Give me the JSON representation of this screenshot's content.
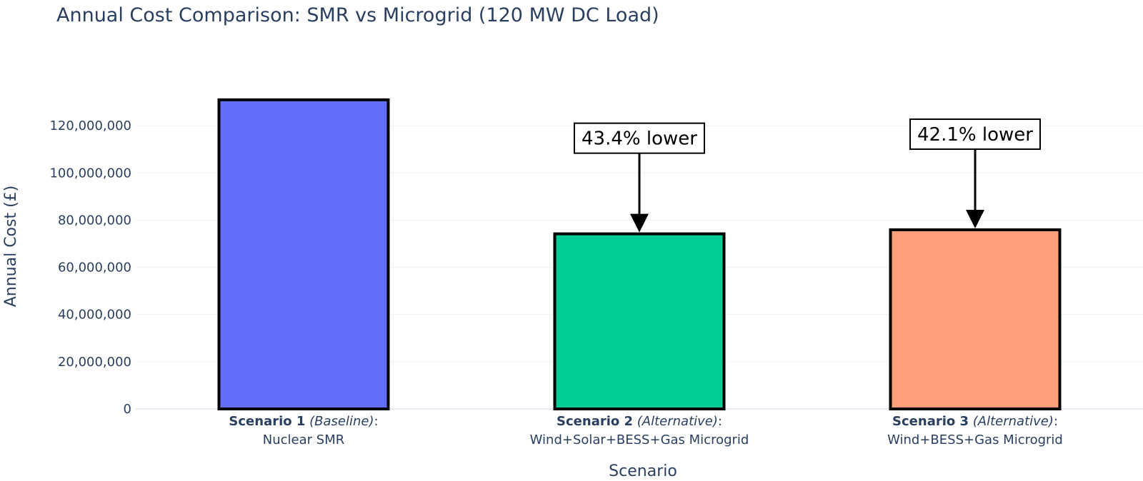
{
  "chart_data": {
    "type": "bar",
    "title": "Annual Cost Comparison: SMR vs Microgrid (120 MW DC Load)",
    "xlabel": "Scenario",
    "ylabel": "Annual Cost (£)",
    "ylim": [
      0,
      137000000
    ],
    "yticks": [
      0,
      20000000,
      40000000,
      60000000,
      80000000,
      100000000,
      120000000
    ],
    "ytick_labels": [
      "0",
      "20,000,000",
      "40,000,000",
      "60,000,000",
      "80,000,000",
      "100,000,000",
      "120,000,000"
    ],
    "grid": true,
    "categories": [
      {
        "bold": "Scenario 1",
        "italic": "(Baseline)",
        "suffix": ":",
        "line2": "Nuclear SMR"
      },
      {
        "bold": "Scenario 2",
        "italic": "(Alternative)",
        "suffix": ":",
        "line2": "Wind+Solar+BESS+Gas Microgrid"
      },
      {
        "bold": "Scenario 3",
        "italic": "(Alternative)",
        "suffix": ":",
        "line2": "Wind+BESS+Gas Microgrid"
      }
    ],
    "values": [
      131000000,
      74200000,
      75900000
    ],
    "colors": [
      "#636efa",
      "#00cc96",
      "#ffa07a"
    ],
    "annotations": [
      {
        "category_index": 1,
        "text": "43.4% lower"
      },
      {
        "category_index": 2,
        "text": "42.1% lower"
      }
    ]
  }
}
